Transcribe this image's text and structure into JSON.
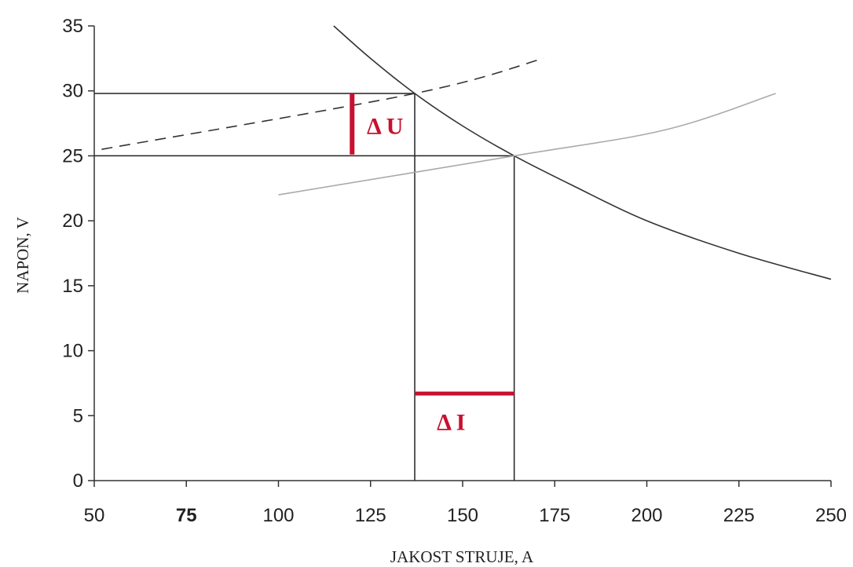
{
  "chart_data": {
    "type": "line",
    "xlabel": "JAKOST STRUJE, A",
    "ylabel": "NAPON, V",
    "xlim": [
      50,
      250
    ],
    "ylim": [
      0,
      35
    ],
    "x_ticks": [
      "50",
      "75",
      "100",
      "125",
      "150",
      "175",
      "200",
      "225",
      "250"
    ],
    "y_ticks": [
      "0",
      "5",
      "10",
      "15",
      "20",
      "25",
      "30",
      "35"
    ],
    "grid": false,
    "series": [
      {
        "style": "solid",
        "color": "#333333",
        "x": [
          115,
          125,
          137,
          150,
          164,
          180,
          200,
          225,
          250
        ],
        "y": [
          35,
          32.5,
          29.8,
          27.3,
          25,
          22.7,
          20,
          17.5,
          15.5
        ]
      },
      {
        "style": "dashed",
        "color": "#333333",
        "x": [
          52,
          137,
          172
        ],
        "y": [
          25.5,
          29.8,
          32.5
        ]
      },
      {
        "style": "solid",
        "color": "#aaaaaa",
        "x": [
          100,
          164,
          205,
          235
        ],
        "y": [
          22,
          25,
          27,
          29.8
        ]
      }
    ],
    "guide_lines": {
      "h": [
        {
          "y": 29.8,
          "x0": 50,
          "x1": 137
        },
        {
          "y": 25,
          "x0": 50,
          "x1": 164
        }
      ],
      "v": [
        {
          "x": 137,
          "y0": 0,
          "y1": 29.8
        },
        {
          "x": 164,
          "y0": 0,
          "y1": 25
        }
      ]
    },
    "annotations": [
      {
        "text": "Δ U",
        "color": "#c8102e",
        "marker": {
          "x": 120,
          "y0": 25.1,
          "y1": 29.8
        },
        "text_x": 124,
        "text_y": 26.7
      },
      {
        "text": "Δ I",
        "color": "#c8102e",
        "marker": {
          "y": 6.7,
          "x0": 137,
          "x1": 164
        },
        "text_x": 143,
        "text_y": 3.9
      }
    ],
    "accent_color": "#c8102e"
  }
}
